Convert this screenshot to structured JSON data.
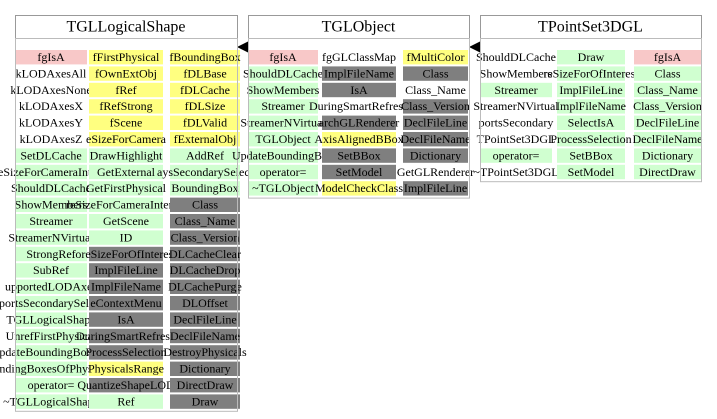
{
  "nodes": [
    {
      "title": "TGLLogicalShape",
      "columns": [
        [
          {
            "label": "fgIsA",
            "kind": "static"
          },
          {
            "label": "kLODAxesAll",
            "kind": "enum"
          },
          {
            "label": "kLODAxesNone",
            "kind": "enum"
          },
          {
            "label": "kLODAxesX",
            "kind": "enum"
          },
          {
            "label": "kLODAxesY",
            "kind": "enum"
          },
          {
            "label": "kLODAxesZ",
            "kind": "enum"
          },
          {
            "label": "SetDLCache",
            "kind": "public"
          },
          {
            "label": "oreSizeForCameraInterest",
            "kind": "public"
          },
          {
            "label": "ShouldDLCache",
            "kind": "public"
          },
          {
            "label": "ShowMembers",
            "kind": "public"
          },
          {
            "label": "Streamer",
            "kind": "public"
          },
          {
            "label": "StreamerNVirtual",
            "kind": "public"
          },
          {
            "label": "StrongRef",
            "kind": "public"
          },
          {
            "label": "SubRef",
            "kind": "public"
          },
          {
            "label": "upportedLODAxes",
            "kind": "public"
          },
          {
            "label": "portsSecondarySelect",
            "kind": "public"
          },
          {
            "label": "TGLLogicalShape",
            "kind": "public"
          },
          {
            "label": "UnrefFirstPhysical",
            "kind": "public"
          },
          {
            "label": "pdateBoundingBoxes",
            "kind": "public"
          },
          {
            "label": "oundingBoxesOfPhysicals",
            "kind": "public"
          },
          {
            "label": "operator=",
            "kind": "public"
          },
          {
            "label": "~TGLLogicalShape",
            "kind": "public"
          }
        ],
        [
          {
            "label": "fFirstPhysical",
            "kind": "member"
          },
          {
            "label": "fOwnExtObj",
            "kind": "member"
          },
          {
            "label": "fRef",
            "kind": "member"
          },
          {
            "label": "fRefStrong",
            "kind": "member"
          },
          {
            "label": "fScene",
            "kind": "member"
          },
          {
            "label": "eSizeForCamera",
            "kind": "member"
          },
          {
            "label": "DrawHighlight",
            "kind": "public"
          },
          {
            "label": "GetExternal",
            "kind": "public"
          },
          {
            "label": "GetFirstPhysical",
            "kind": "public"
          },
          {
            "label": "reSizeForCameraInterest",
            "kind": "public"
          },
          {
            "label": "GetScene",
            "kind": "public"
          },
          {
            "label": "ID",
            "kind": "public"
          },
          {
            "label": "oreSizeForOfInterest",
            "kind": "protected"
          },
          {
            "label": "ImplFileLine",
            "kind": "protected"
          },
          {
            "label": "ImplFileName",
            "kind": "protected"
          },
          {
            "label": "eContextMenu",
            "kind": "protected"
          },
          {
            "label": "IsA",
            "kind": "protected"
          },
          {
            "label": "DuringSmartRefresh",
            "kind": "protected"
          },
          {
            "label": "ProcessSelection",
            "kind": "protected"
          },
          {
            "label": "PhysicalsRange",
            "kind": "member"
          },
          {
            "label": "QuantizeShapeLOD",
            "kind": "protected"
          },
          {
            "label": "Ref",
            "kind": "public"
          }
        ],
        [
          {
            "label": "fBoundingBox",
            "kind": "member"
          },
          {
            "label": "fDLBase",
            "kind": "member"
          },
          {
            "label": "fDLCache",
            "kind": "member"
          },
          {
            "label": "fDLSize",
            "kind": "member"
          },
          {
            "label": "fDLValid",
            "kind": "member"
          },
          {
            "label": "fExternalObj",
            "kind": "member"
          },
          {
            "label": "AddRef",
            "kind": "public"
          },
          {
            "label": "aysSecondarySelect",
            "kind": "public"
          },
          {
            "label": "BoundingBox",
            "kind": "public"
          },
          {
            "label": "Class",
            "kind": "protected"
          },
          {
            "label": "Class_Name",
            "kind": "protected"
          },
          {
            "label": "Class_Version",
            "kind": "protected"
          },
          {
            "label": "DLCacheClear",
            "kind": "protected"
          },
          {
            "label": "DLCacheDrop",
            "kind": "protected"
          },
          {
            "label": "DLCachePurge",
            "kind": "protected"
          },
          {
            "label": "DLOffset",
            "kind": "protected"
          },
          {
            "label": "DeclFileLine",
            "kind": "protected"
          },
          {
            "label": "DeclFileName",
            "kind": "protected"
          },
          {
            "label": "DestroyPhysicals",
            "kind": "protected"
          },
          {
            "label": "Dictionary",
            "kind": "protected"
          },
          {
            "label": "DirectDraw",
            "kind": "protected"
          },
          {
            "label": "Draw",
            "kind": "protected"
          }
        ]
      ]
    },
    {
      "title": "TGLObject",
      "columns": [
        [
          {
            "label": "fgIsA",
            "kind": "static"
          },
          {
            "label": "ShouldDLCache",
            "kind": "public"
          },
          {
            "label": "ShowMembers",
            "kind": "public"
          },
          {
            "label": "Streamer",
            "kind": "public"
          },
          {
            "label": "StreamerNVirtual",
            "kind": "public"
          },
          {
            "label": "TGLObject",
            "kind": "public"
          },
          {
            "label": "UpdateBoundingBox",
            "kind": "public"
          },
          {
            "label": "operator=",
            "kind": "public"
          },
          {
            "label": "~TGLObject",
            "kind": "public"
          }
        ],
        [
          {
            "label": "fgGLClassMap",
            "kind": "enum"
          },
          {
            "label": "ImplFileName",
            "kind": "protected"
          },
          {
            "label": "IsA",
            "kind": "protected"
          },
          {
            "label": "DuringSmartRefresh",
            "kind": "enum"
          },
          {
            "label": "archGLRenderer",
            "kind": "protected"
          },
          {
            "label": "AxisAlignedBBox",
            "kind": "member"
          },
          {
            "label": "SetBBox",
            "kind": "protected"
          },
          {
            "label": "SetModel",
            "kind": "protected"
          },
          {
            "label": "ModelCheckClass",
            "kind": "member"
          }
        ],
        [
          {
            "label": "fMultiColor",
            "kind": "member"
          },
          {
            "label": "Class",
            "kind": "protected"
          },
          {
            "label": "Class_Name",
            "kind": "enum"
          },
          {
            "label": "Class_Version",
            "kind": "protected"
          },
          {
            "label": "DeclFileLine",
            "kind": "protected"
          },
          {
            "label": "DeclFileName",
            "kind": "protected"
          },
          {
            "label": "Dictionary",
            "kind": "protected"
          },
          {
            "label": "GetGLRenderer",
            "kind": "enum"
          },
          {
            "label": "ImplFileLine",
            "kind": "protected"
          }
        ]
      ]
    },
    {
      "title": "TPointSet3DGL",
      "columns": [
        [
          {
            "label": "ShouldDLCache",
            "kind": "enum"
          },
          {
            "label": "ShowMembers",
            "kind": "enum"
          },
          {
            "label": "Streamer",
            "kind": "public"
          },
          {
            "label": "StreamerNVirtual",
            "kind": "enum"
          },
          {
            "label": "portsSecondary",
            "kind": "enum"
          },
          {
            "label": "TPointSet3DGL",
            "kind": "enum"
          },
          {
            "label": "operator=",
            "kind": "public"
          },
          {
            "label": "~TPointSet3DGL",
            "kind": "enum"
          }
        ],
        [
          {
            "label": "Draw",
            "kind": "public"
          },
          {
            "label": "reSizeForOfInterest",
            "kind": "public"
          },
          {
            "label": "ImplFileLine",
            "kind": "public"
          },
          {
            "label": "ImplFileName",
            "kind": "public"
          },
          {
            "label": "SelectIsA",
            "kind": "public"
          },
          {
            "label": "ProcessSelection",
            "kind": "public"
          },
          {
            "label": "SetBBox",
            "kind": "public"
          },
          {
            "label": "SetModel",
            "kind": "public"
          }
        ],
        [
          {
            "label": "fgIsA",
            "kind": "static"
          },
          {
            "label": "Class",
            "kind": "public"
          },
          {
            "label": "Class_Name",
            "kind": "public"
          },
          {
            "label": "Class_Version",
            "kind": "public"
          },
          {
            "label": "DeclFileLine",
            "kind": "public"
          },
          {
            "label": "DeclFileName",
            "kind": "public"
          },
          {
            "label": "Dictionary",
            "kind": "public"
          },
          {
            "label": "DirectDraw",
            "kind": "public"
          }
        ]
      ]
    }
  ]
}
